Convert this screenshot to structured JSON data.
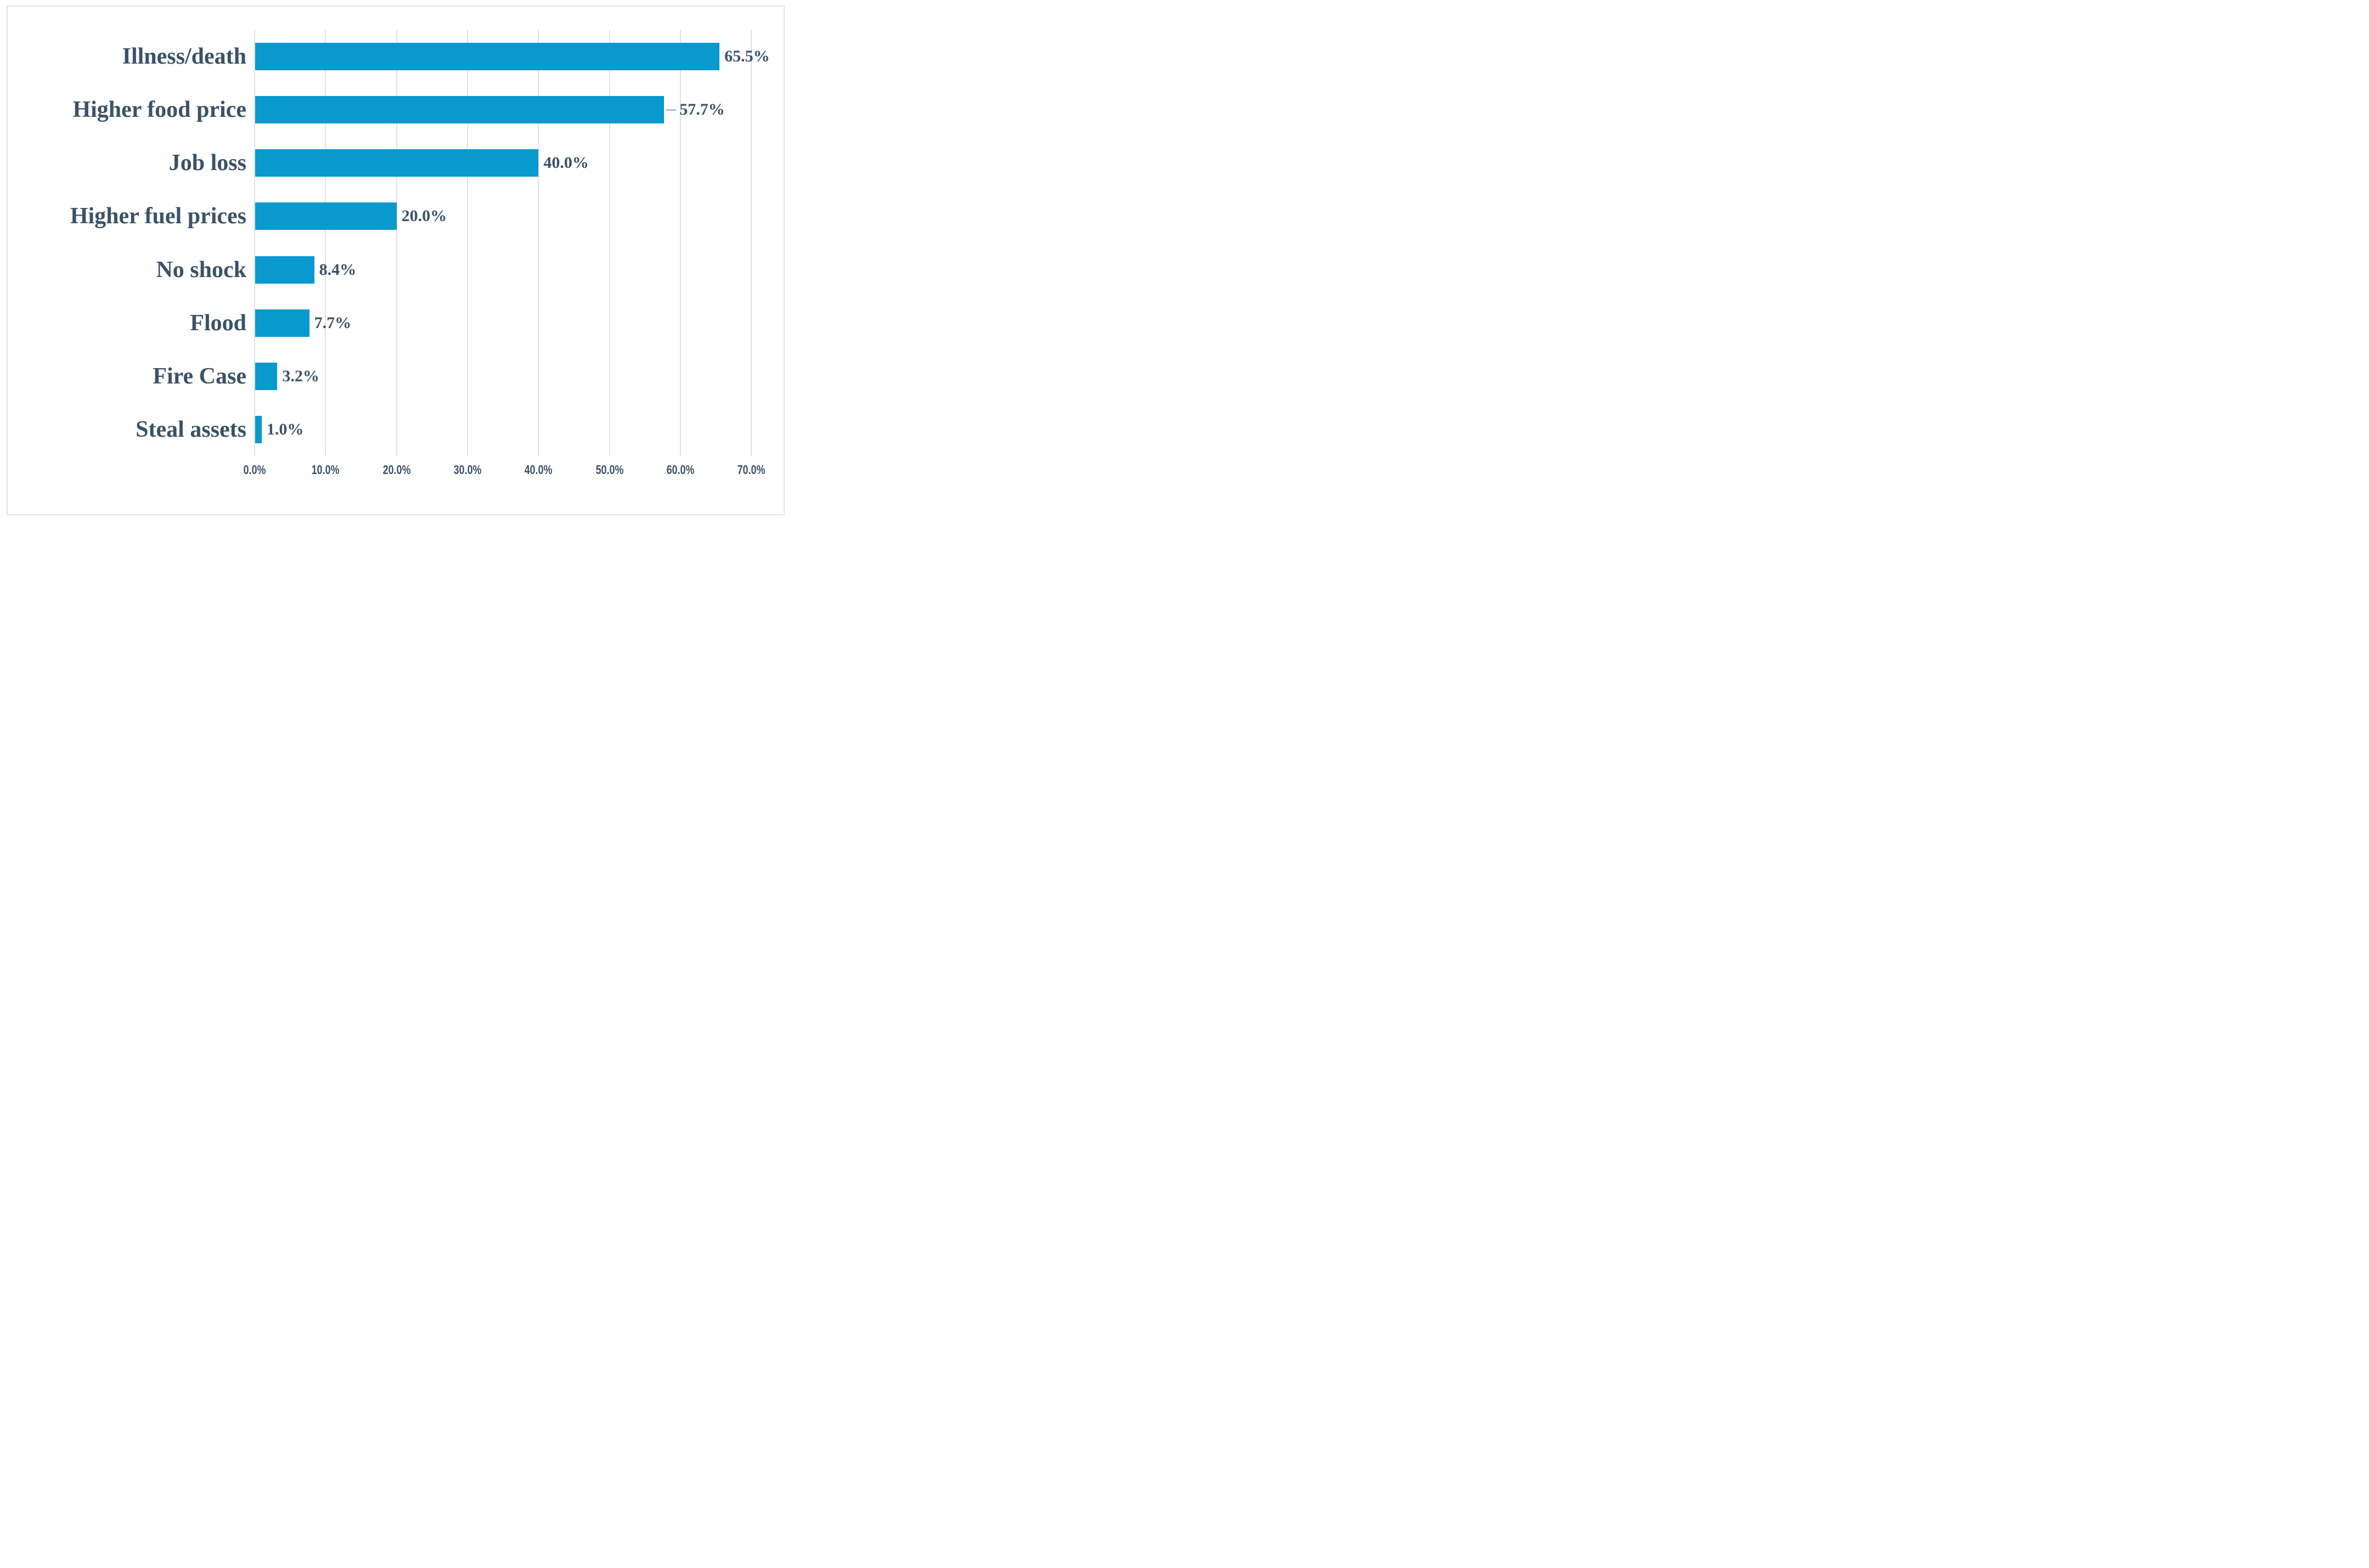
{
  "chart_data": {
    "type": "bar",
    "orientation": "horizontal",
    "title": "",
    "xlabel": "",
    "ylabel": "",
    "categories": [
      "Illness/death",
      "Higher food price",
      "Job loss",
      "Higher fuel prices",
      "No shock",
      "Flood",
      "Fire Case",
      "Steal assets"
    ],
    "values": [
      65.5,
      57.7,
      40.0,
      20.0,
      8.4,
      7.7,
      3.2,
      1.0
    ],
    "data_labels": [
      "65.5%",
      "57.7%",
      "40.0%",
      "20.0%",
      "8.4%",
      "7.7%",
      "3.2%",
      "1.0%"
    ],
    "x_ticks": [
      {
        "value": 0,
        "label": "0.0%"
      },
      {
        "value": 10,
        "label": "10.0%"
      },
      {
        "value": 20,
        "label": "20.0%"
      },
      {
        "value": 30,
        "label": "30.0%"
      },
      {
        "value": 40,
        "label": "40.0%"
      },
      {
        "value": 50,
        "label": "50.0%"
      },
      {
        "value": 60,
        "label": "60.0%"
      },
      {
        "value": 70,
        "label": "70.0%"
      }
    ],
    "xlim": [
      0,
      70
    ],
    "grid": "vertical-gridlines-on",
    "legend": "none",
    "leader_line_category": "Higher food price",
    "colors": {
      "bar": "#0899CE",
      "text": "#3B5268",
      "gridline": "#DDE3EA",
      "leader_line": "#B3BFCC",
      "figure_border": "#DEE4EA",
      "background": "#FFFFFF"
    }
  }
}
